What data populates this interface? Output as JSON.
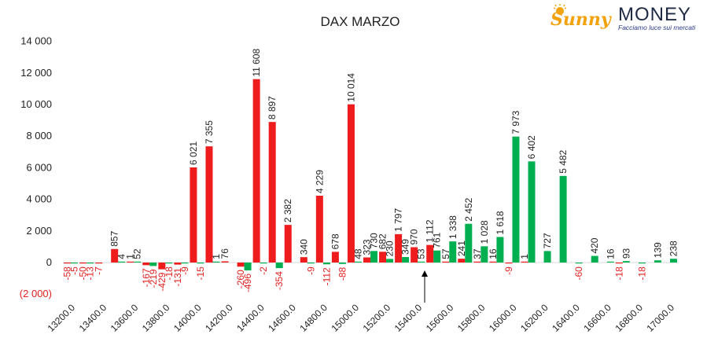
{
  "logo": {
    "brand_left": "Sunny",
    "brand_right": "MONEY",
    "tagline": "Facciamo luce sui mercati"
  },
  "colors": {
    "calls": "#ee1c1c",
    "puts": "#00b050",
    "positive_label": "#222222",
    "negative_label": "#e02020",
    "brand_orange": "#f2a20c",
    "brand_navy": "#1f2a44"
  },
  "chart_data": {
    "type": "bar",
    "title": "DAX MARZO",
    "xlabel": "",
    "ylabel": "",
    "ylim": [
      -2000,
      14000
    ],
    "y_ticks": [
      -2000,
      0,
      2000,
      4000,
      6000,
      8000,
      10000,
      12000,
      14000
    ],
    "y_tick_labels": [
      "(2 000)",
      "0",
      "2 000",
      "4 000",
      "6 000",
      "8 000",
      "10 000",
      "12 000",
      "14 000"
    ],
    "x_tick_labels": [
      "13200.0",
      "13400.0",
      "13600.0",
      "13800.0",
      "14000.0",
      "14200.0",
      "14400.0",
      "14600.0",
      "14800.0",
      "15000.0",
      "15200.0",
      "15400.0",
      "15600.0",
      "15800.0",
      "16000.0",
      "16200.0",
      "16400.0",
      "16600.0",
      "16800.0",
      "17000.0"
    ],
    "grid": false,
    "legend": "none",
    "categories": [
      13200,
      13300,
      13400,
      13500,
      13600,
      13700,
      13800,
      13900,
      14000,
      14100,
      14200,
      14300,
      14400,
      14500,
      14600,
      14700,
      14800,
      14900,
      15000,
      15100,
      15200,
      15300,
      15400,
      15500,
      15600,
      15700,
      15800,
      15900,
      16000,
      16100,
      16200,
      16300,
      16400,
      16500,
      16600,
      16700,
      16800,
      16900,
      17000
    ],
    "series": [
      {
        "color": "#ee1c1c",
        "values": [
          -58,
          -50,
          -7,
          857,
          1,
          -167,
          -429,
          -131,
          6021,
          7355,
          76,
          -260,
          11608,
          8897,
          2382,
          340,
          4229,
          678,
          10014,
          323,
          682,
          1797,
          970,
          1112,
          57,
          241,
          37,
          16,
          -9,
          1,
          null,
          null,
          null,
          null,
          null,
          -18,
          null,
          null,
          null
        ]
      },
      {
        "color": "#00b050",
        "values": [
          -5,
          -13,
          null,
          4,
          52,
          -219,
          -18,
          -9,
          -15,
          1,
          null,
          -496,
          -2,
          -354,
          null,
          -9,
          -112,
          -88,
          48,
          730,
          230,
          349,
          53,
          761,
          1338,
          2452,
          1028,
          1618,
          7973,
          6402,
          727,
          5482,
          -60,
          420,
          16,
          93,
          -18,
          139,
          238
        ]
      }
    ],
    "annotations": [
      "vertical arrow under strike 15400.0 marking the current price level"
    ]
  }
}
